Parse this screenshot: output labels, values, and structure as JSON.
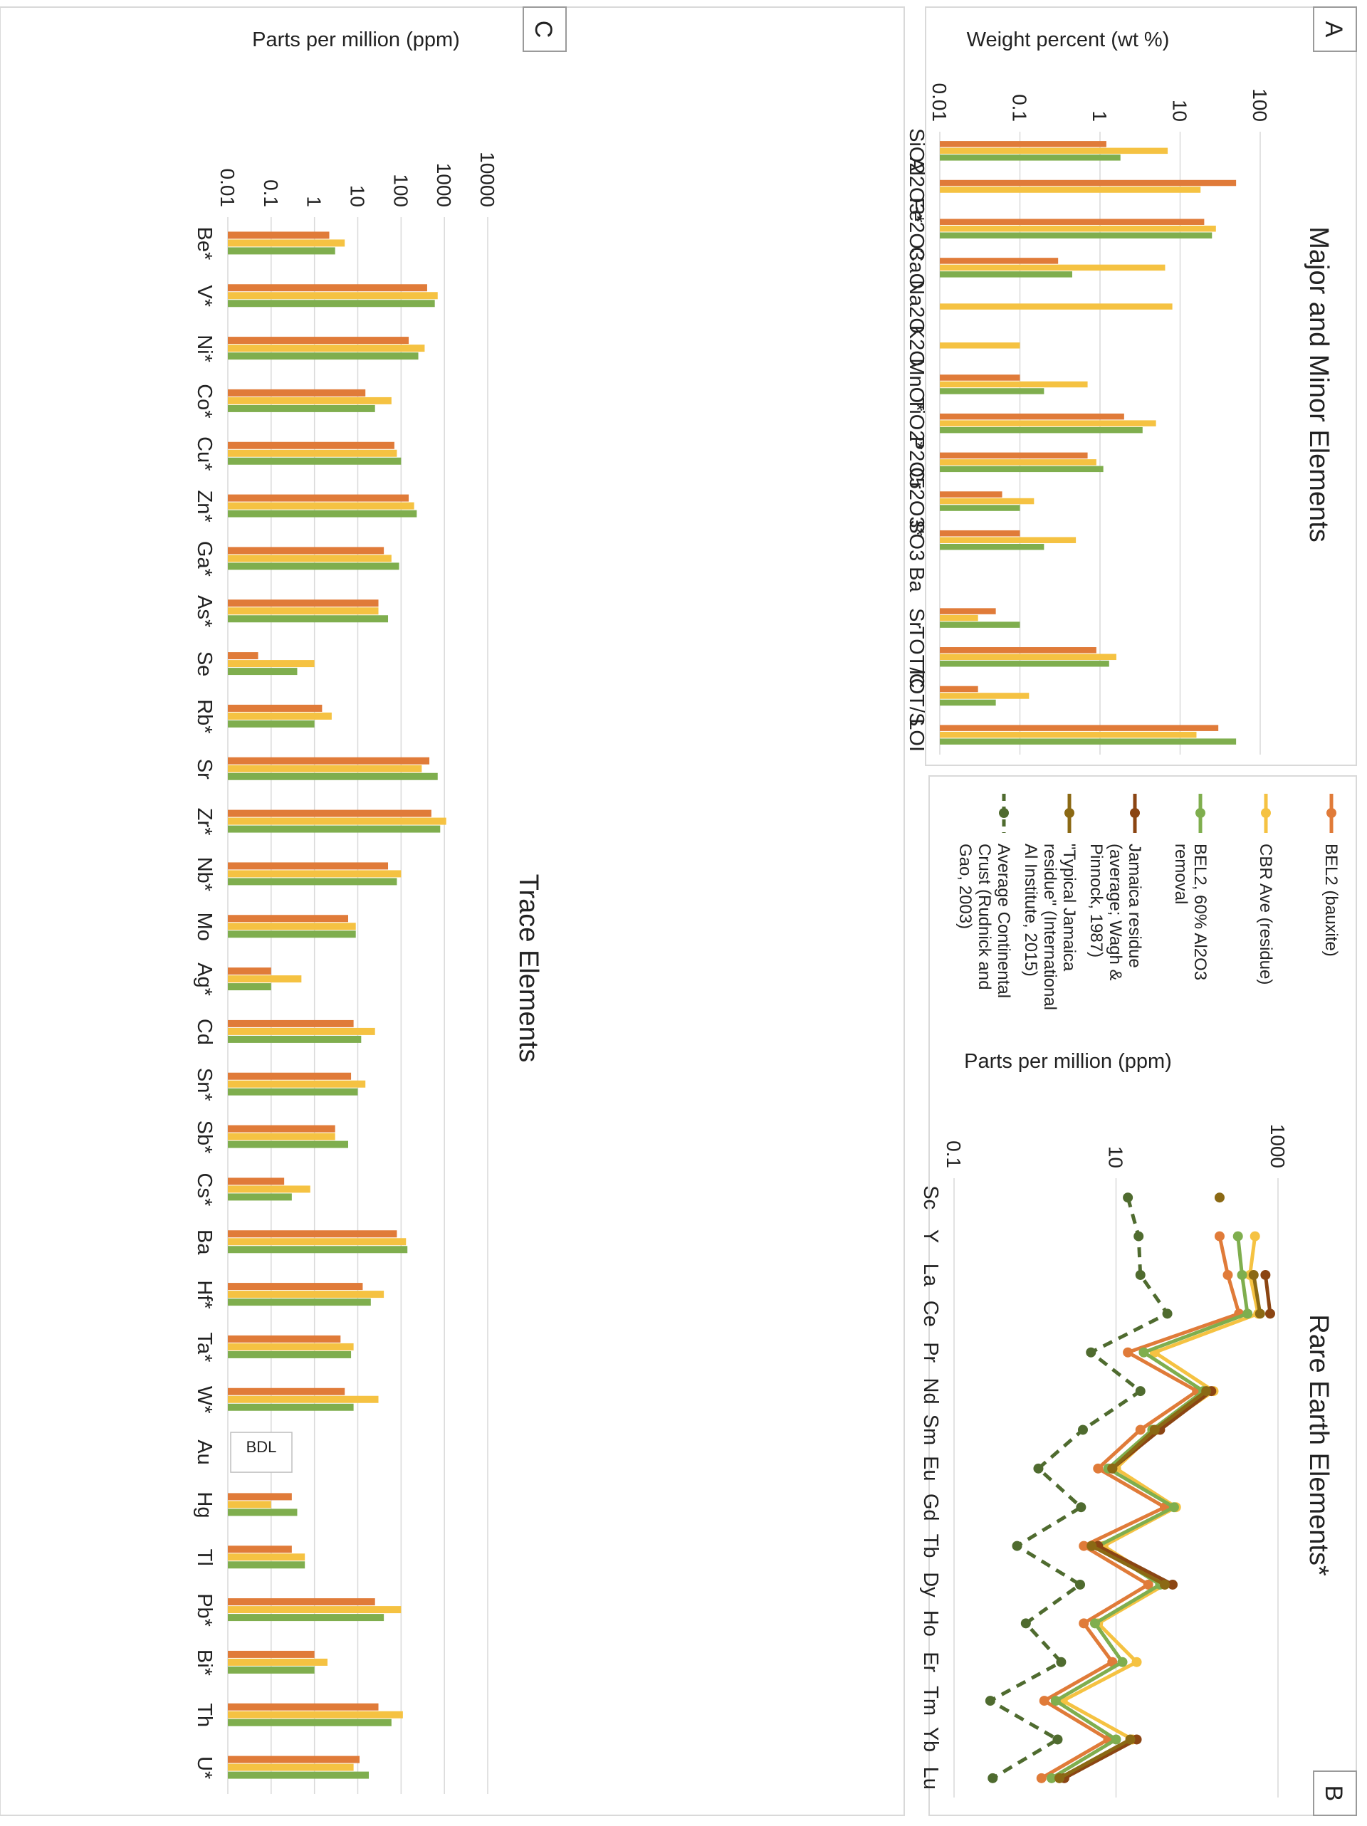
{
  "panels": {
    "A": {
      "letter": "A",
      "title": "Major and Minor Elements",
      "ylabel": "Weight percent (wt %)",
      "scale": "log",
      "ylim": [
        0.01,
        100
      ],
      "ticks": [
        "0.01",
        "0.1",
        "1",
        "10",
        "100"
      ]
    },
    "B": {
      "letter": "B",
      "title": "Rare Earth Elements*",
      "ylabel": "Parts per million (ppm)",
      "scale": "log",
      "ylim": [
        0.1,
        1000
      ],
      "ticks": [
        "0.1",
        "10",
        "1000"
      ]
    },
    "C": {
      "letter": "C",
      "title": "Trace Elements",
      "ylabel": "Parts per million (ppm)",
      "scale": "log",
      "ylim": [
        0.01,
        10000
      ],
      "ticks": [
        "0.01",
        "0.1",
        "1",
        "10",
        "100",
        "1000",
        "10000"
      ],
      "bdl_label": "BDL"
    }
  },
  "legend": [
    {
      "label": "BEL2 (bauxite)",
      "color": "#E07B39",
      "dash": false
    },
    {
      "label": "CBR Ave (residue)",
      "color": "#F5C242",
      "dash": false
    },
    {
      "label": "BEL2, 60% Al2O3 removal",
      "color": "#7FAE4E",
      "dash": false
    },
    {
      "label": "Jamaica residue (average; Wagh & Pinnock, 1987)",
      "color": "#8B4513",
      "dash": false
    },
    {
      "label": "\"Typical Jamaica residue\" (International Al Institute, 2015)",
      "color": "#8B6914",
      "dash": false
    },
    {
      "label": "Average Continental Crust (Rudnick and Gao, 2003)",
      "color": "#4F6B2F",
      "dash": true
    }
  ],
  "chart_data": [
    {
      "type": "bar",
      "title": "Major and Minor Elements",
      "ylabel": "Weight percent (wt %)",
      "yscale": "log",
      "ylim": [
        0.01,
        100
      ],
      "categories": [
        "SiO2",
        "Al2O3*",
        "Fe2O3",
        "CaO",
        "Na2O",
        "K2O",
        "MnO*",
        "TiO2*",
        "P2O5",
        "Cr2O3*",
        "SO3",
        "Ba",
        "Sr",
        "TOT/C",
        "TOT/S",
        "LOI"
      ],
      "series": [
        {
          "name": "BEL2 (bauxite)",
          "color": "#E07B39",
          "values": [
            1.2,
            50,
            20,
            0.3,
            null,
            null,
            0.1,
            2.0,
            0.7,
            0.06,
            0.1,
            null,
            0.05,
            0.9,
            0.03,
            30
          ]
        },
        {
          "name": "CBR Ave (residue)",
          "color": "#F5C242",
          "values": [
            7,
            18,
            28,
            6.5,
            8,
            0.1,
            0.7,
            5,
            0.9,
            0.15,
            0.5,
            null,
            0.03,
            1.6,
            0.13,
            16
          ]
        },
        {
          "name": "BEL2, 60% Al2O3 removal",
          "color": "#7FAE4E",
          "values": [
            1.8,
            null,
            25,
            0.45,
            null,
            null,
            0.2,
            3.4,
            1.1,
            0.1,
            0.2,
            null,
            0.1,
            1.3,
            0.05,
            50
          ]
        }
      ]
    },
    {
      "type": "line",
      "title": "Rare Earth Elements*",
      "ylabel": "Parts per million (ppm)",
      "yscale": "log",
      "ylim": [
        0.1,
        1000
      ],
      "categories": [
        "Sc",
        "Y",
        "La",
        "Ce",
        "Pr",
        "Nd",
        "Sm",
        "Eu",
        "Gd",
        "Tb",
        "Dy",
        "Ho",
        "Er",
        "Tm",
        "Yb",
        "Lu"
      ],
      "series": [
        {
          "name": "BEL2 (bauxite)",
          "color": "#E07B39",
          "values": [
            null,
            190,
            240,
            330,
            14,
            100,
            20,
            6,
            40,
            4,
            25,
            4,
            9,
            1.3,
            8,
            1.2
          ]
        },
        {
          "name": "CBR Ave (residue)",
          "color": "#F5C242",
          "values": [
            null,
            520,
            450,
            570,
            30,
            160,
            32,
            10,
            55,
            7,
            40,
            6,
            18,
            2.2,
            16,
            2.0
          ]
        },
        {
          "name": "BEL2, 60% Al2O3 removal",
          "color": "#7FAE4E",
          "values": [
            null,
            320,
            360,
            420,
            22,
            120,
            28,
            8,
            52,
            6,
            35,
            5.5,
            12,
            1.8,
            10,
            1.6
          ]
        },
        {
          "name": "Jamaica residue (average; Wagh & Pinnock, 1987)",
          "color": "#8B4513",
          "values": [
            null,
            null,
            700,
            800,
            null,
            150,
            35,
            9,
            null,
            6,
            50,
            null,
            null,
            null,
            18,
            2.3
          ]
        },
        {
          "name": "\"Typical Jamaica residue\" (International Al Institute, 2015)",
          "color": "#8B6914",
          "values": [
            190,
            null,
            500,
            600,
            null,
            130,
            30,
            9,
            null,
            5,
            40,
            null,
            null,
            null,
            15,
            2.0
          ]
        },
        {
          "name": "Average Continental Crust (Rudnick and Gao, 2003)",
          "color": "#4F6B2F",
          "values": [
            14,
            19,
            20,
            43,
            4.9,
            20,
            3.9,
            1.1,
            3.7,
            0.6,
            3.6,
            0.77,
            2.1,
            0.28,
            1.9,
            0.3
          ]
        }
      ]
    },
    {
      "type": "bar",
      "title": "Trace Elements",
      "ylabel": "Parts per million (ppm)",
      "yscale": "log",
      "ylim": [
        0.01,
        10000
      ],
      "categories": [
        "Be*",
        "V*",
        "Ni*",
        "Co*",
        "Cu*",
        "Zn*",
        "Ga*",
        "As*",
        "Se",
        "Rb*",
        "Sr",
        "Zr*",
        "Nb*",
        "Mo",
        "Ag*",
        "Cd",
        "Sn*",
        "Sb*",
        "Cs*",
        "Ba",
        "Hf*",
        "Ta*",
        "W*",
        "Au",
        "Hg",
        "Tl",
        "Pb*",
        "Bi*",
        "Th",
        "U*"
      ],
      "annotations": [
        {
          "category": "Au",
          "text": "BDL"
        }
      ],
      "series": [
        {
          "name": "BEL2 (bauxite)",
          "color": "#E07B39",
          "values": [
            2.2,
            400,
            150,
            15,
            70,
            150,
            40,
            30,
            0.05,
            1.5,
            450,
            500,
            50,
            6,
            0.1,
            8,
            7,
            3,
            0.2,
            80,
            13,
            4,
            5,
            null,
            0.3,
            0.3,
            25,
            1,
            30,
            11
          ]
        },
        {
          "name": "CBR Ave (residue)",
          "color": "#F5C242",
          "values": [
            5,
            700,
            350,
            60,
            80,
            200,
            60,
            30,
            1,
            2.5,
            300,
            1100,
            100,
            9,
            0.5,
            25,
            15,
            3,
            0.8,
            130,
            40,
            8,
            30,
            null,
            0.1,
            0.6,
            100,
            2,
            110,
            8
          ]
        },
        {
          "name": "BEL2, 60% Al2O3 removal",
          "color": "#7FAE4E",
          "values": [
            3,
            600,
            250,
            25,
            100,
            230,
            90,
            50,
            0.4,
            1,
            700,
            800,
            80,
            9,
            0.1,
            12,
            10,
            6,
            0.3,
            140,
            20,
            7,
            8,
            null,
            0.4,
            0.6,
            40,
            1,
            60,
            18
          ]
        }
      ]
    }
  ]
}
